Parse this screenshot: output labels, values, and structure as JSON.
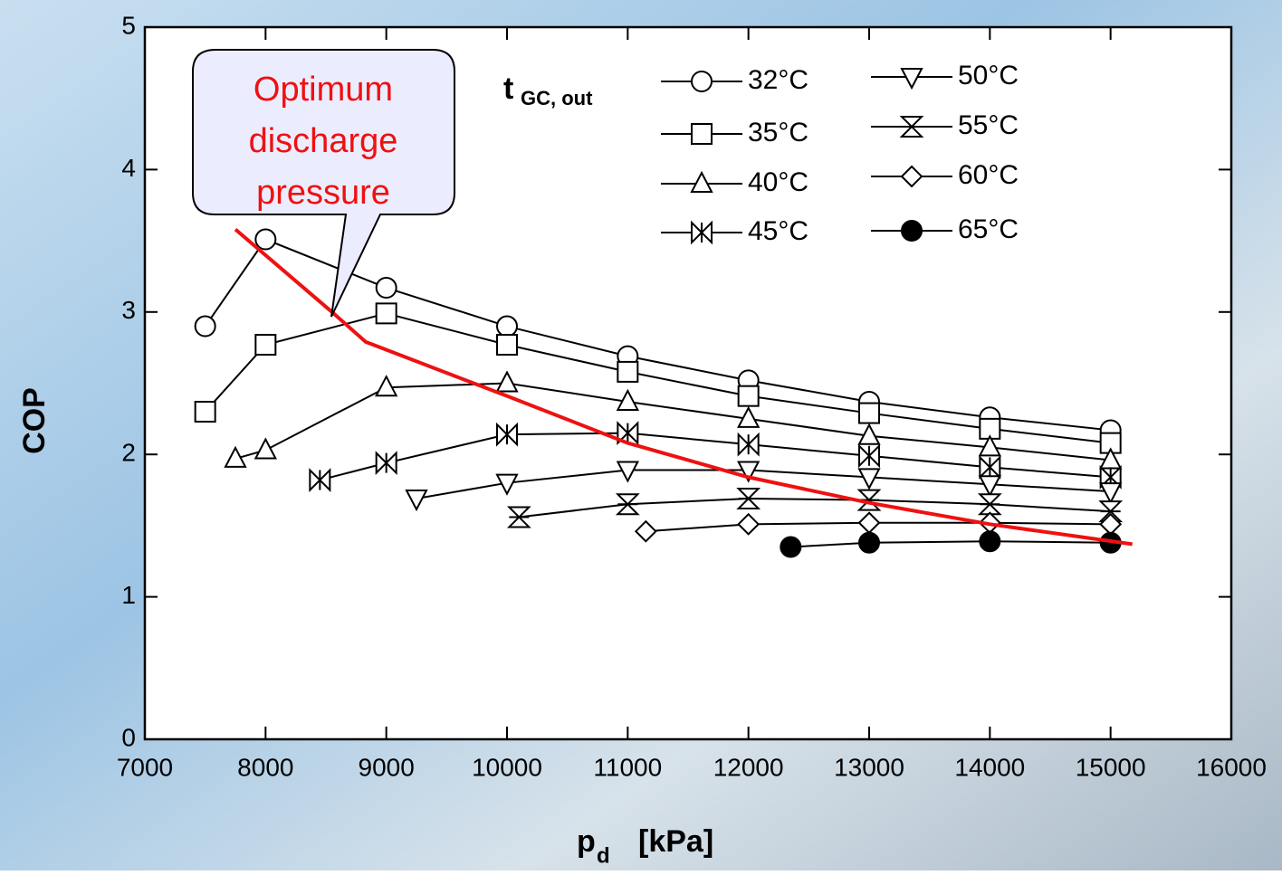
{
  "chart_data": {
    "type": "line",
    "xlabel": "p",
    "xlabel_sub": "d",
    "xlabel_unit": "[kPa]",
    "ylabel": "COP",
    "legend_title": "t",
    "legend_title_sub": "GC, out",
    "annotation": [
      "Optimum",
      "discharge",
      "pressure"
    ],
    "xlim": [
      7000,
      16000
    ],
    "xticks": [
      7000,
      8000,
      9000,
      10000,
      11000,
      12000,
      13000,
      14000,
      15000,
      16000
    ],
    "ylim": [
      0,
      5
    ],
    "yticks": [
      0,
      1,
      2,
      3,
      4,
      5
    ],
    "series": [
      {
        "name": "32°C",
        "marker": "circle",
        "color": "#000000",
        "x": [
          7500,
          8000,
          9000,
          10000,
          11000,
          12000,
          13000,
          14000,
          15000
        ],
        "values": [
          2.9,
          3.51,
          3.17,
          2.9,
          2.69,
          2.52,
          2.37,
          2.26,
          2.17
        ]
      },
      {
        "name": "35°C",
        "marker": "square",
        "color": "#000000",
        "x": [
          7500,
          8000,
          9000,
          10000,
          11000,
          12000,
          13000,
          14000,
          15000
        ],
        "values": [
          2.3,
          2.77,
          2.99,
          2.77,
          2.58,
          2.41,
          2.29,
          2.18,
          2.08
        ]
      },
      {
        "name": "40°C",
        "marker": "triangle-up",
        "color": "#000000",
        "x": [
          7750,
          8000,
          9000,
          10000,
          11000,
          12000,
          13000,
          14000,
          15000
        ],
        "values": [
          1.97,
          2.03,
          2.47,
          2.5,
          2.37,
          2.25,
          2.13,
          2.05,
          1.96
        ]
      },
      {
        "name": "45°C",
        "marker": "bowtie",
        "color": "#000000",
        "x": [
          8450,
          9000,
          10000,
          11000,
          12000,
          13000,
          14000,
          15000
        ],
        "values": [
          1.82,
          1.94,
          2.14,
          2.15,
          2.07,
          1.99,
          1.91,
          1.84
        ]
      },
      {
        "name": "50°C",
        "marker": "triangle-down",
        "color": "#000000",
        "x": [
          9250,
          10000,
          11000,
          12000,
          13000,
          14000,
          15000
        ],
        "values": [
          1.69,
          1.8,
          1.89,
          1.89,
          1.84,
          1.79,
          1.74
        ]
      },
      {
        "name": "55°C",
        "marker": "hourglass",
        "color": "#000000",
        "x": [
          10100,
          11000,
          12000,
          13000,
          14000,
          15000
        ],
        "values": [
          1.56,
          1.65,
          1.69,
          1.68,
          1.65,
          1.6
        ]
      },
      {
        "name": "60°C",
        "marker": "diamond",
        "color": "#000000",
        "x": [
          11150,
          12000,
          13000,
          14000,
          15000
        ],
        "values": [
          1.46,
          1.51,
          1.52,
          1.52,
          1.51
        ]
      },
      {
        "name": "65°C",
        "marker": "filled-circle",
        "color": "#000000",
        "x": [
          12350,
          13000,
          14000,
          15000
        ],
        "values": [
          1.35,
          1.38,
          1.39,
          1.38
        ]
      }
    ],
    "optimum": {
      "color": "#ee1111",
      "x": [
        7750,
        8550,
        8830,
        10000,
        11000,
        12000,
        13000,
        14000,
        15180
      ],
      "values": [
        3.58,
        3.0,
        2.79,
        2.41,
        2.08,
        1.84,
        1.66,
        1.51,
        1.37
      ]
    }
  }
}
